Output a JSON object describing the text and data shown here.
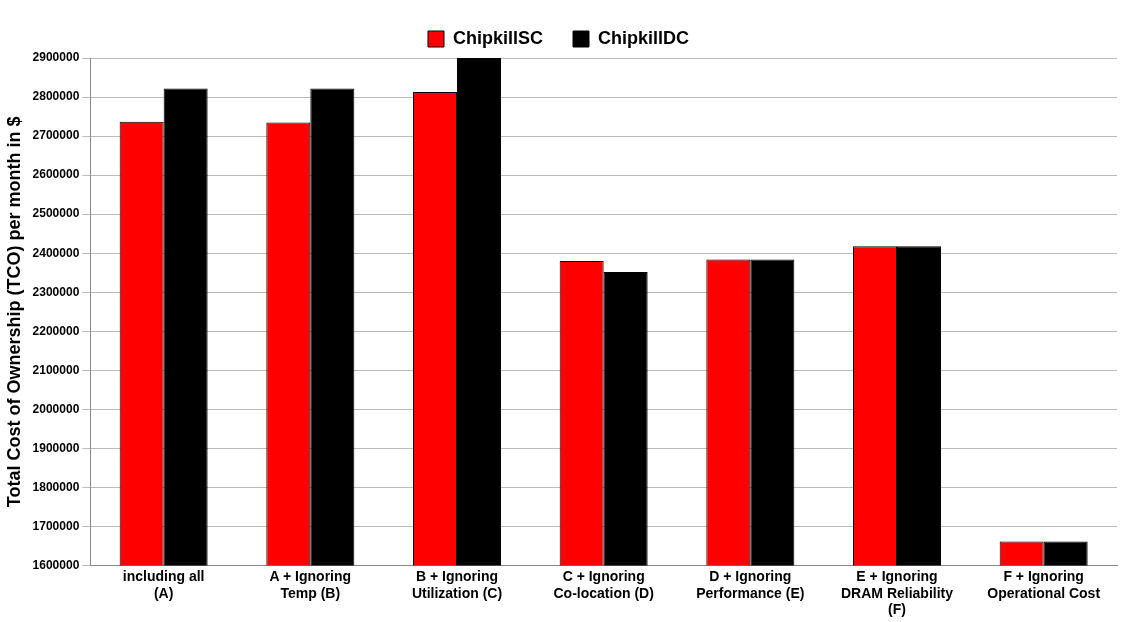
{
  "chart_data": {
    "type": "bar",
    "ylabel": "Total Cost of Ownership (TCO) per month in $",
    "categories": [
      "including all (A)",
      "A + Ignoring Temp (B)",
      "B + Ignoring Utilization (C)",
      "C + Ignoring Co-location (D)",
      "D + Ignoring Performance (E)",
      "E + Ignoring DRAM Reliability (F)",
      "F + Ignoring Operational Cost"
    ],
    "series": [
      {
        "name": "ChipkillSC",
        "color": "#ff0000",
        "values": [
          2737000,
          2735000,
          2813000,
          2380000,
          2384000,
          2418000,
          1662000
        ]
      },
      {
        "name": "ChipkillDC",
        "color": "#000000",
        "values": [
          2822000,
          2822000,
          2900000,
          2352000,
          2384000,
          2418000,
          1662000
        ]
      }
    ],
    "ylim": [
      1600000,
      2900000
    ],
    "yticks": [
      1600000,
      1700000,
      1800000,
      1900000,
      2000000,
      2100000,
      2200000,
      2300000,
      2400000,
      2500000,
      2600000,
      2700000,
      2800000,
      2900000
    ],
    "grid": "y",
    "legend": "top"
  }
}
